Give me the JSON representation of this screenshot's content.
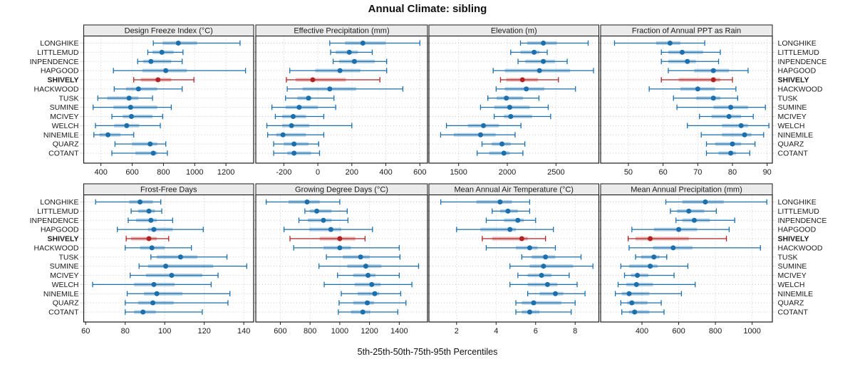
{
  "title": "Annual Climate: sibling",
  "caption": "5th-25th-50th-75th-95th Percentiles",
  "colors": {
    "blue": "#1b6fad",
    "red": "#b22222",
    "band_opacity": 0.33,
    "grid": "#c9c9c9",
    "side_tick": "#b5b5b5",
    "strip_bg": "#ebebeb",
    "border": "#1a1a1a",
    "text": "#1a1a1a"
  },
  "chart_data": {
    "type": "dot-interval",
    "percentile_labels": [
      "5th",
      "25th",
      "50th",
      "75th",
      "95th"
    ],
    "highlight_site": "SHIVELY",
    "sites": [
      "LONGHIKE",
      "LITTLEMUD",
      "INPENDENCE",
      "HAPGOOD",
      "SHIVELY",
      "HACKWOOD",
      "TUSK",
      "SUMINE",
      "MCIVEY",
      "WELCH",
      "NINEMILE",
      "QUARZ",
      "COTANT"
    ],
    "panels": [
      {
        "slug": "design-freeze-index",
        "title": "Design Freeze Index (°C)",
        "row": 0,
        "col": 0,
        "xlim": [
          290,
          1377
        ],
        "ticks": [
          400,
          600,
          800,
          1000,
          1200
        ],
        "values": [
          [
            735,
            795,
            895,
            1015,
            1290
          ],
          [
            700,
            730,
            790,
            865,
            925
          ],
          [
            635,
            670,
            720,
            850,
            920
          ],
          [
            480,
            665,
            815,
            950,
            1325
          ],
          [
            610,
            655,
            765,
            850,
            995
          ],
          [
            485,
            560,
            640,
            760,
            920
          ],
          [
            380,
            440,
            580,
            640,
            730
          ],
          [
            350,
            480,
            590,
            760,
            850
          ],
          [
            470,
            540,
            595,
            730,
            795
          ],
          [
            365,
            485,
            565,
            645,
            780
          ],
          [
            355,
            390,
            445,
            525,
            610
          ],
          [
            490,
            600,
            715,
            760,
            815
          ],
          [
            470,
            620,
            735,
            760,
            825
          ]
        ]
      },
      {
        "slug": "effective-precipitation",
        "title": "Effective Precipitation (mm)",
        "row": 0,
        "col": 1,
        "xlim": [
          -365,
          645
        ],
        "ticks": [
          -200,
          0,
          200,
          400,
          600
        ],
        "values": [
          [
            70,
            160,
            265,
            400,
            600
          ],
          [
            75,
            105,
            185,
            235,
            320
          ],
          [
            90,
            125,
            215,
            335,
            405
          ],
          [
            -165,
            -15,
            130,
            250,
            405
          ],
          [
            -185,
            -130,
            -30,
            165,
            365
          ],
          [
            -180,
            -90,
            70,
            225,
            500
          ],
          [
            -190,
            -120,
            -55,
            -40,
            95
          ],
          [
            -270,
            -190,
            -110,
            0,
            105
          ],
          [
            -250,
            -210,
            -145,
            -70,
            35
          ],
          [
            -300,
            -210,
            -155,
            -50,
            200
          ],
          [
            -295,
            -245,
            -205,
            -70,
            35
          ],
          [
            -260,
            -200,
            -140,
            -55,
            5
          ],
          [
            -260,
            -180,
            -140,
            -40,
            10
          ]
        ]
      },
      {
        "slug": "elevation",
        "title": "Elevation (m)",
        "row": 0,
        "col": 2,
        "xlim": [
          1195,
          2940
        ],
        "ticks": [
          1500,
          2000,
          2500
        ],
        "values": [
          [
            2135,
            2205,
            2370,
            2510,
            2830
          ],
          [
            2035,
            2135,
            2275,
            2330,
            2410
          ],
          [
            2110,
            2185,
            2370,
            2490,
            2615
          ],
          [
            1855,
            1975,
            2330,
            2645,
            2885
          ],
          [
            1930,
            1990,
            2155,
            2315,
            2525
          ],
          [
            1885,
            1975,
            2195,
            2380,
            2700
          ],
          [
            1800,
            1890,
            1990,
            2160,
            2325
          ],
          [
            1725,
            1865,
            2025,
            2230,
            2420
          ],
          [
            1865,
            1965,
            2035,
            2255,
            2445
          ],
          [
            1375,
            1595,
            1755,
            1915,
            2140
          ],
          [
            1315,
            1450,
            1725,
            1880,
            2080
          ],
          [
            1740,
            1840,
            1945,
            2035,
            2180
          ],
          [
            1690,
            1815,
            1965,
            2025,
            2160
          ]
        ]
      },
      {
        "slug": "fraction-ppt-rain",
        "title": "Fraction of Annual PPT as Rain",
        "row": 0,
        "col": 3,
        "xlim": [
          42,
          91.5
        ],
        "ticks": [
          50,
          60,
          70,
          80,
          90
        ],
        "values": [
          [
            46,
            58,
            62,
            65,
            72
          ],
          [
            59.5,
            61.5,
            65.5,
            71.5,
            76.5
          ],
          [
            59.5,
            61.5,
            67,
            69.5,
            76
          ],
          [
            61.5,
            69,
            74.5,
            79,
            84.5
          ],
          [
            59.5,
            64.5,
            74.5,
            76.5,
            80
          ],
          [
            56,
            65,
            70,
            75,
            81
          ],
          [
            63,
            69.5,
            74.5,
            76.5,
            81.5
          ],
          [
            64,
            74.5,
            79.5,
            84.5,
            89.5
          ],
          [
            70.5,
            74,
            79,
            82.5,
            86
          ],
          [
            67,
            77,
            82.5,
            84.5,
            90.5
          ],
          [
            71,
            77,
            83.5,
            85.5,
            89
          ],
          [
            72.5,
            75,
            80,
            82.5,
            86.5
          ],
          [
            72.5,
            76,
            79.5,
            81,
            85
          ]
        ]
      },
      {
        "slug": "frost-free-days",
        "title": "Frost-Free Days",
        "row": 1,
        "col": 0,
        "xlim": [
          59,
          145
        ],
        "ticks": [
          60,
          80,
          100,
          120,
          140
        ],
        "values": [
          [
            65,
            82,
            87.5,
            94,
            98
          ],
          [
            83,
            86.5,
            92,
            95,
            98.5
          ],
          [
            81.5,
            85.5,
            93,
            96,
            104
          ],
          [
            76,
            91.5,
            94.5,
            104,
            119.5
          ],
          [
            80.5,
            83,
            92,
            96,
            102
          ],
          [
            80,
            87.5,
            93.5,
            100,
            113.5
          ],
          [
            93,
            96,
            108,
            116.5,
            131.5
          ],
          [
            87,
            91.5,
            100.5,
            124.5,
            141.5
          ],
          [
            82.5,
            90.5,
            103.5,
            119,
            127
          ],
          [
            63.5,
            84.5,
            94.5,
            105,
            123.5
          ],
          [
            81,
            89.5,
            96,
            109,
            133
          ],
          [
            80,
            86.5,
            94,
            104.5,
            132
          ],
          [
            80,
            84.5,
            89,
            95.5,
            119
          ]
        ]
      },
      {
        "slug": "growing-degree-days",
        "title": "Growing Degree Days (°C)",
        "row": 1,
        "col": 1,
        "xlim": [
          435,
          1590
        ],
        "ticks": [
          600,
          800,
          1000,
          1200,
          1400
        ],
        "values": [
          [
            505,
            655,
            780,
            865,
            1000
          ],
          [
            765,
            800,
            845,
            945,
            1050
          ],
          [
            725,
            785,
            890,
            945,
            1055
          ],
          [
            625,
            795,
            940,
            1010,
            1220
          ],
          [
            665,
            865,
            1000,
            1105,
            1170
          ],
          [
            690,
            890,
            1000,
            1075,
            1400
          ],
          [
            910,
            1020,
            1140,
            1200,
            1405
          ],
          [
            860,
            1050,
            1175,
            1280,
            1530
          ],
          [
            985,
            1090,
            1190,
            1240,
            1400
          ],
          [
            895,
            1100,
            1215,
            1275,
            1485
          ],
          [
            1010,
            1120,
            1235,
            1265,
            1410
          ],
          [
            995,
            1090,
            1185,
            1230,
            1445
          ],
          [
            990,
            1075,
            1155,
            1205,
            1390
          ]
        ]
      },
      {
        "slug": "mean-annual-air-temperature",
        "title": "Mean Annual Air Temperature (°C)",
        "row": 1,
        "col": 2,
        "xlim": [
          0.6,
          9.2
        ],
        "ticks": [
          2,
          4,
          6,
          8
        ],
        "values": [
          [
            1.2,
            3.0,
            4.2,
            4.8,
            5.7
          ],
          [
            3.8,
            4.2,
            4.6,
            5.1,
            5.7
          ],
          [
            3.5,
            4.4,
            5.1,
            5.4,
            6.0
          ],
          [
            2.0,
            3.2,
            4.7,
            5.0,
            6.9
          ],
          [
            3.3,
            3.8,
            5.3,
            5.6,
            6.5
          ],
          [
            3.5,
            5.0,
            5.7,
            6.1,
            7.0
          ],
          [
            5.3,
            5.8,
            6.5,
            7.0,
            8.3
          ],
          [
            4.7,
            5.7,
            6.4,
            7.9,
            8.9
          ],
          [
            5.1,
            5.6,
            6.3,
            6.8,
            7.7
          ],
          [
            4.7,
            5.6,
            6.6,
            7.1,
            8.1
          ],
          [
            5.6,
            6.2,
            7.0,
            7.4,
            8.5
          ],
          [
            5.0,
            5.3,
            5.9,
            7.3,
            8.0
          ],
          [
            5.0,
            5.3,
            5.7,
            6.2,
            7.8
          ]
        ]
      },
      {
        "slug": "mean-annual-precipitation",
        "title": "Mean Annual Precipitation (mm)",
        "row": 1,
        "col": 3,
        "xlim": [
          175,
          1110
        ],
        "ticks": [
          400,
          600,
          800,
          1000
        ],
        "values": [
          [
            530,
            620,
            745,
            845,
            1080
          ],
          [
            555,
            590,
            655,
            740,
            805
          ],
          [
            585,
            620,
            685,
            770,
            905
          ],
          [
            345,
            465,
            600,
            700,
            875
          ],
          [
            325,
            365,
            445,
            655,
            860
          ],
          [
            330,
            460,
            570,
            675,
            1045
          ],
          [
            365,
            395,
            465,
            495,
            535
          ],
          [
            285,
            330,
            445,
            485,
            650
          ],
          [
            305,
            340,
            375,
            435,
            575
          ],
          [
            270,
            315,
            370,
            460,
            690
          ],
          [
            255,
            290,
            330,
            440,
            615
          ],
          [
            285,
            320,
            345,
            430,
            505
          ],
          [
            290,
            330,
            360,
            440,
            520
          ]
        ]
      }
    ]
  }
}
